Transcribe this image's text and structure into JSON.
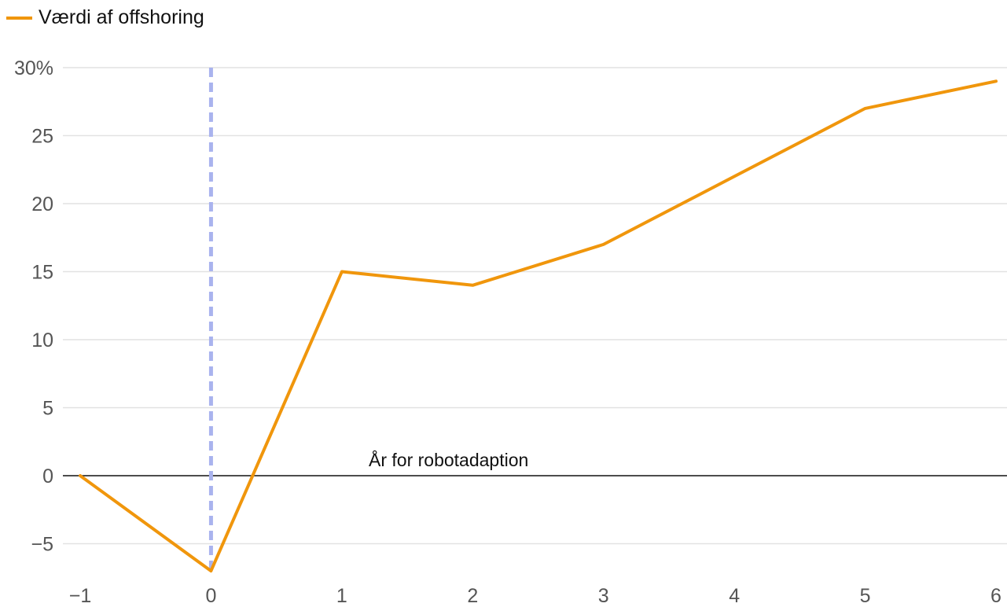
{
  "chart_data": {
    "type": "line",
    "x": [
      -1,
      0,
      1,
      2,
      3,
      4,
      5,
      6
    ],
    "x_tick_labels": [
      "−1",
      "0",
      "1",
      "2",
      "3",
      "4",
      "5",
      "6"
    ],
    "y_tick_values": [
      30,
      25,
      20,
      15,
      10,
      5,
      0,
      -5
    ],
    "y_tick_labels": [
      "30%",
      "25",
      "20",
      "15",
      "10",
      "5",
      "0",
      "−5"
    ],
    "ylim": [
      -7.5,
      30
    ],
    "xlim": [
      -1,
      6
    ],
    "series": [
      {
        "name": "Værdi af offshoring",
        "values": [
          0,
          -7,
          15,
          14,
          17,
          22,
          27,
          29
        ],
        "color": "#f0960c"
      }
    ],
    "annotation": {
      "text": "År for robotadaption",
      "x": 0,
      "line_color": "#a9b3ee"
    },
    "grid": true,
    "legend_position": "top-left",
    "colors": {
      "series": "#f0960c",
      "marker_line": "#a9b3ee",
      "grid": "#e2e2e2",
      "zero_line": "#111111",
      "tick_text": "#555555"
    }
  }
}
